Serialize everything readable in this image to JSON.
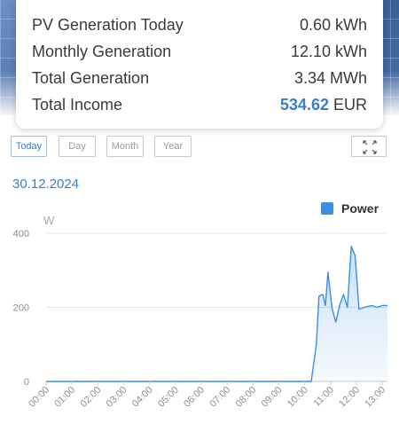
{
  "stats": [
    {
      "label": "PV Generation Today",
      "value": "0.60",
      "unit": "kWh"
    },
    {
      "label": "Monthly Generation",
      "value": "12.10",
      "unit": "kWh"
    },
    {
      "label": "Total Generation",
      "value": "3.34",
      "unit": "MWh"
    },
    {
      "label": "Total Income",
      "value": "534.62",
      "unit": "EUR"
    }
  ],
  "period_buttons": {
    "today": "Today",
    "day": "Day",
    "month": "Month",
    "year": "Year"
  },
  "selected_period": "Today",
  "date": "30.12.2024",
  "colors": {
    "accent": "#3a7fc4",
    "series": "#3e8ee0"
  },
  "chart_data": {
    "type": "area",
    "ylabel": "W",
    "ylim": [
      0,
      400
    ],
    "y_ticks": [
      "0",
      "200",
      "400"
    ],
    "x_ticks": [
      "00:00",
      "01:00",
      "02:00",
      "03:00",
      "04:00",
      "05:00",
      "06:00",
      "07:00",
      "08:00",
      "09:00",
      "10:00",
      "11:00",
      "12:00",
      "13:00"
    ],
    "legend": "top-right",
    "grid": true,
    "series": [
      {
        "name": "Power",
        "x": [
          0,
          1,
          2,
          3,
          4,
          5,
          6,
          7,
          8,
          9,
          10,
          10.25,
          10.45,
          10.55,
          10.7,
          10.8,
          10.9,
          11.05,
          11.2,
          11.35,
          11.5,
          11.65,
          11.8,
          11.95,
          12.1,
          12.3,
          12.6,
          12.8,
          13.0,
          13.2
        ],
        "y": [
          0,
          0,
          0,
          0,
          0,
          0,
          0,
          0,
          0,
          0,
          0,
          0,
          100,
          230,
          235,
          205,
          295,
          200,
          160,
          205,
          235,
          200,
          365,
          340,
          195,
          200,
          205,
          200,
          205,
          205
        ]
      }
    ]
  }
}
